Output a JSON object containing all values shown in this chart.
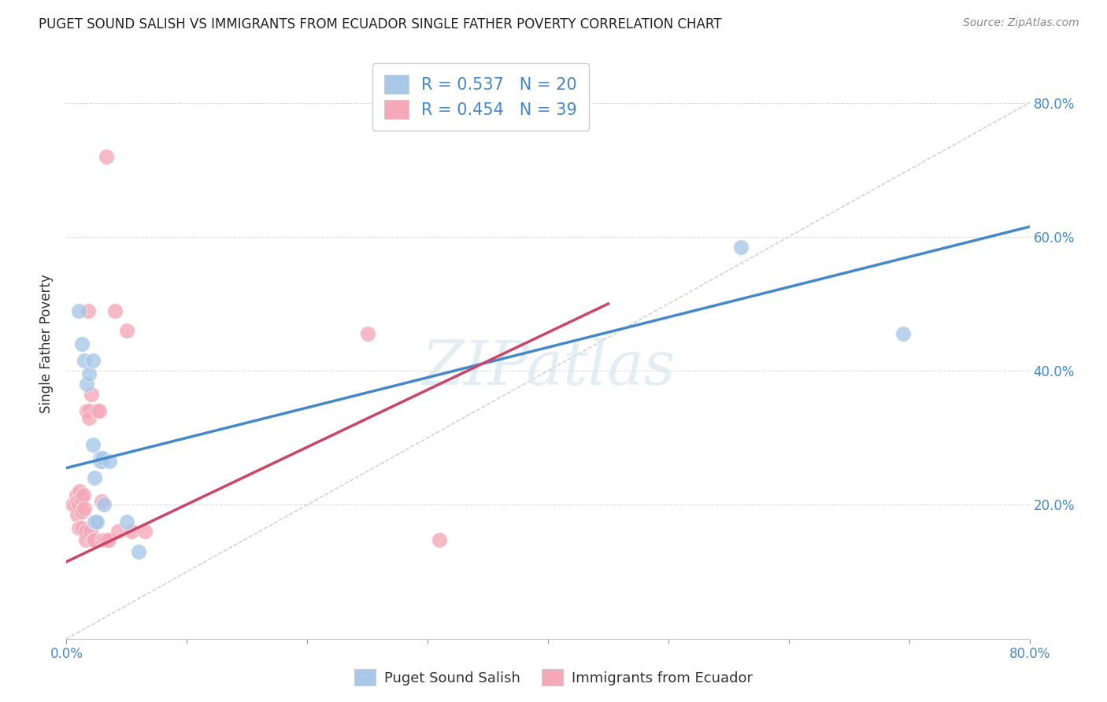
{
  "title": "PUGET SOUND SALISH VS IMMIGRANTS FROM ECUADOR SINGLE FATHER POVERTY CORRELATION CHART",
  "source": "Source: ZipAtlas.com",
  "ylabel": "Single Father Poverty",
  "xlim": [
    0.0,
    0.8
  ],
  "ylim": [
    0.0,
    0.88
  ],
  "yticks": [
    0.2,
    0.4,
    0.6,
    0.8
  ],
  "xticks": [
    0.0,
    0.1,
    0.2,
    0.3,
    0.4,
    0.5,
    0.6,
    0.7,
    0.8
  ],
  "legend_label1": "Puget Sound Salish",
  "legend_label2": "Immigrants from Ecuador",
  "R1": 0.537,
  "N1": 20,
  "R2": 0.454,
  "N2": 39,
  "blue_color": "#a8c8e8",
  "pink_color": "#f4a8b8",
  "blue_line_color": "#4488cc",
  "pink_line_color": "#cc4466",
  "diagonal_color": "#cccccc",
  "blue_line": [
    [
      0.0,
      0.255
    ],
    [
      0.8,
      0.615
    ]
  ],
  "pink_line": [
    [
      0.0,
      0.115
    ],
    [
      0.45,
      0.5
    ]
  ],
  "blue_scatter": [
    [
      0.01,
      0.49
    ],
    [
      0.013,
      0.44
    ],
    [
      0.015,
      0.415
    ],
    [
      0.017,
      0.38
    ],
    [
      0.019,
      0.395
    ],
    [
      0.022,
      0.415
    ],
    [
      0.022,
      0.29
    ],
    [
      0.023,
      0.24
    ],
    [
      0.023,
      0.175
    ],
    [
      0.025,
      0.175
    ],
    [
      0.028,
      0.27
    ],
    [
      0.028,
      0.265
    ],
    [
      0.029,
      0.265
    ],
    [
      0.03,
      0.27
    ],
    [
      0.031,
      0.2
    ],
    [
      0.036,
      0.265
    ],
    [
      0.05,
      0.175
    ],
    [
      0.06,
      0.13
    ],
    [
      0.56,
      0.585
    ],
    [
      0.695,
      0.455
    ]
  ],
  "pink_scatter": [
    [
      0.005,
      0.2
    ],
    [
      0.007,
      0.2
    ],
    [
      0.008,
      0.215
    ],
    [
      0.009,
      0.205
    ],
    [
      0.009,
      0.185
    ],
    [
      0.01,
      0.2
    ],
    [
      0.01,
      0.165
    ],
    [
      0.011,
      0.22
    ],
    [
      0.012,
      0.21
    ],
    [
      0.013,
      0.19
    ],
    [
      0.013,
      0.165
    ],
    [
      0.014,
      0.215
    ],
    [
      0.015,
      0.195
    ],
    [
      0.016,
      0.16
    ],
    [
      0.016,
      0.148
    ],
    [
      0.017,
      0.34
    ],
    [
      0.018,
      0.49
    ],
    [
      0.019,
      0.34
    ],
    [
      0.019,
      0.33
    ],
    [
      0.02,
      0.16
    ],
    [
      0.021,
      0.365
    ],
    [
      0.022,
      0.148
    ],
    [
      0.023,
      0.148
    ],
    [
      0.024,
      0.175
    ],
    [
      0.025,
      0.34
    ],
    [
      0.027,
      0.34
    ],
    [
      0.029,
      0.205
    ],
    [
      0.03,
      0.148
    ],
    [
      0.031,
      0.148
    ],
    [
      0.033,
      0.148
    ],
    [
      0.033,
      0.72
    ],
    [
      0.035,
      0.148
    ],
    [
      0.04,
      0.49
    ],
    [
      0.043,
      0.16
    ],
    [
      0.05,
      0.46
    ],
    [
      0.054,
      0.16
    ],
    [
      0.065,
      0.16
    ],
    [
      0.25,
      0.455
    ],
    [
      0.31,
      0.148
    ]
  ]
}
